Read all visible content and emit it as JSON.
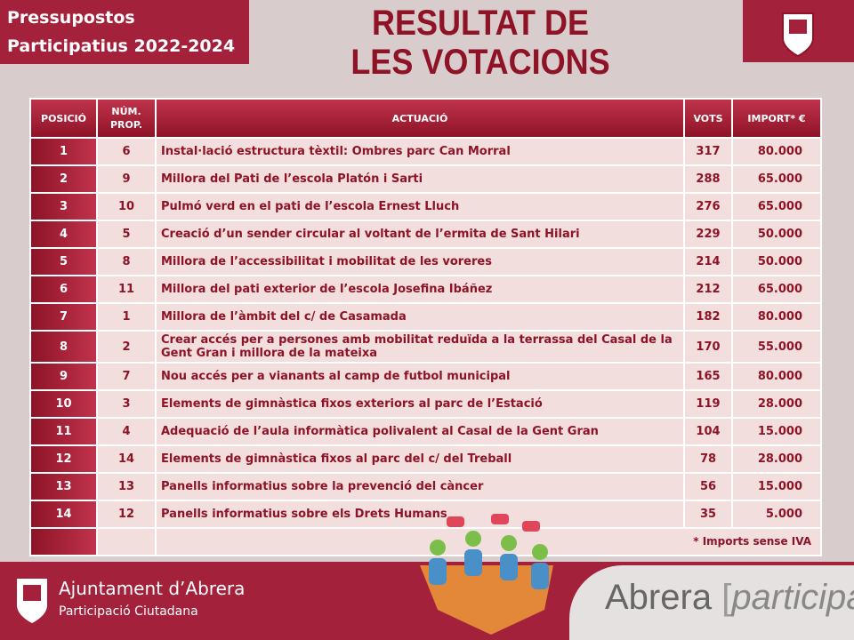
{
  "header": {
    "program": [
      "Pressupostos",
      "Participatius 2022-2024"
    ],
    "title": [
      "RESULTAT DE",
      "LES VOTACIONS"
    ]
  },
  "table": {
    "columns": [
      "POSICIÓ",
      "NÚM. PROP.",
      "ACTUACIÓ",
      "VOTS",
      "IMPORT* €"
    ],
    "rows": [
      [
        "1",
        "6",
        "Instal·lació estructura tèxtil: Ombres parc Can Morral",
        "317",
        "80.000"
      ],
      [
        "2",
        "9",
        "Millora del Pati de l’escola Platón i Sarti",
        "288",
        "65.000"
      ],
      [
        "3",
        "10",
        "Pulmó verd en el pati de l’escola Ernest Lluch",
        "276",
        "65.000"
      ],
      [
        "4",
        "5",
        "Creació d’un sender circular al voltant de l’ermita de Sant Hilari",
        "229",
        "50.000"
      ],
      [
        "5",
        "8",
        "Millora de l’accessibilitat i mobilitat de les voreres",
        "214",
        "50.000"
      ],
      [
        "6",
        "11",
        "Millora del pati exterior de l’escola Josefina Ibáñez",
        "212",
        "65.000"
      ],
      [
        "7",
        "1",
        "Millora de l’àmbit del c/ de Casamada",
        "182",
        "80.000"
      ],
      [
        "8",
        "2",
        "Crear accés per a persones amb mobilitat reduïda a la terrassa del Casal de la Gent Gran i millora de la mateixa",
        "170",
        "55.000"
      ],
      [
        "9",
        "7",
        "Nou accés per a vianants al camp de futbol municipal",
        "165",
        "80.000"
      ],
      [
        "10",
        "3",
        "Elements de gimnàstica fixos exteriors al parc de l’Estació",
        "119",
        "28.000"
      ],
      [
        "11",
        "4",
        "Adequació de l’aula informàtica polivalent al Casal de la Gent Gran",
        "104",
        "15.000"
      ],
      [
        "12",
        "14",
        "Elements de gimnàstica fixos al parc del c/ del Treball",
        "78",
        "28.000"
      ],
      [
        "13",
        "13",
        "Panells informatius sobre la prevenció del càncer",
        "56",
        "15.000"
      ],
      [
        "14",
        "12",
        "Panells informatius sobre els Drets Humans",
        "35",
        "5.000"
      ]
    ],
    "footnote": "* Imports sense IVA"
  },
  "footer": {
    "org": "Ajuntament d’Abrera",
    "dept": "Participació Ciutadana",
    "brand": "Abrera",
    "brand_tag": "participa"
  }
}
